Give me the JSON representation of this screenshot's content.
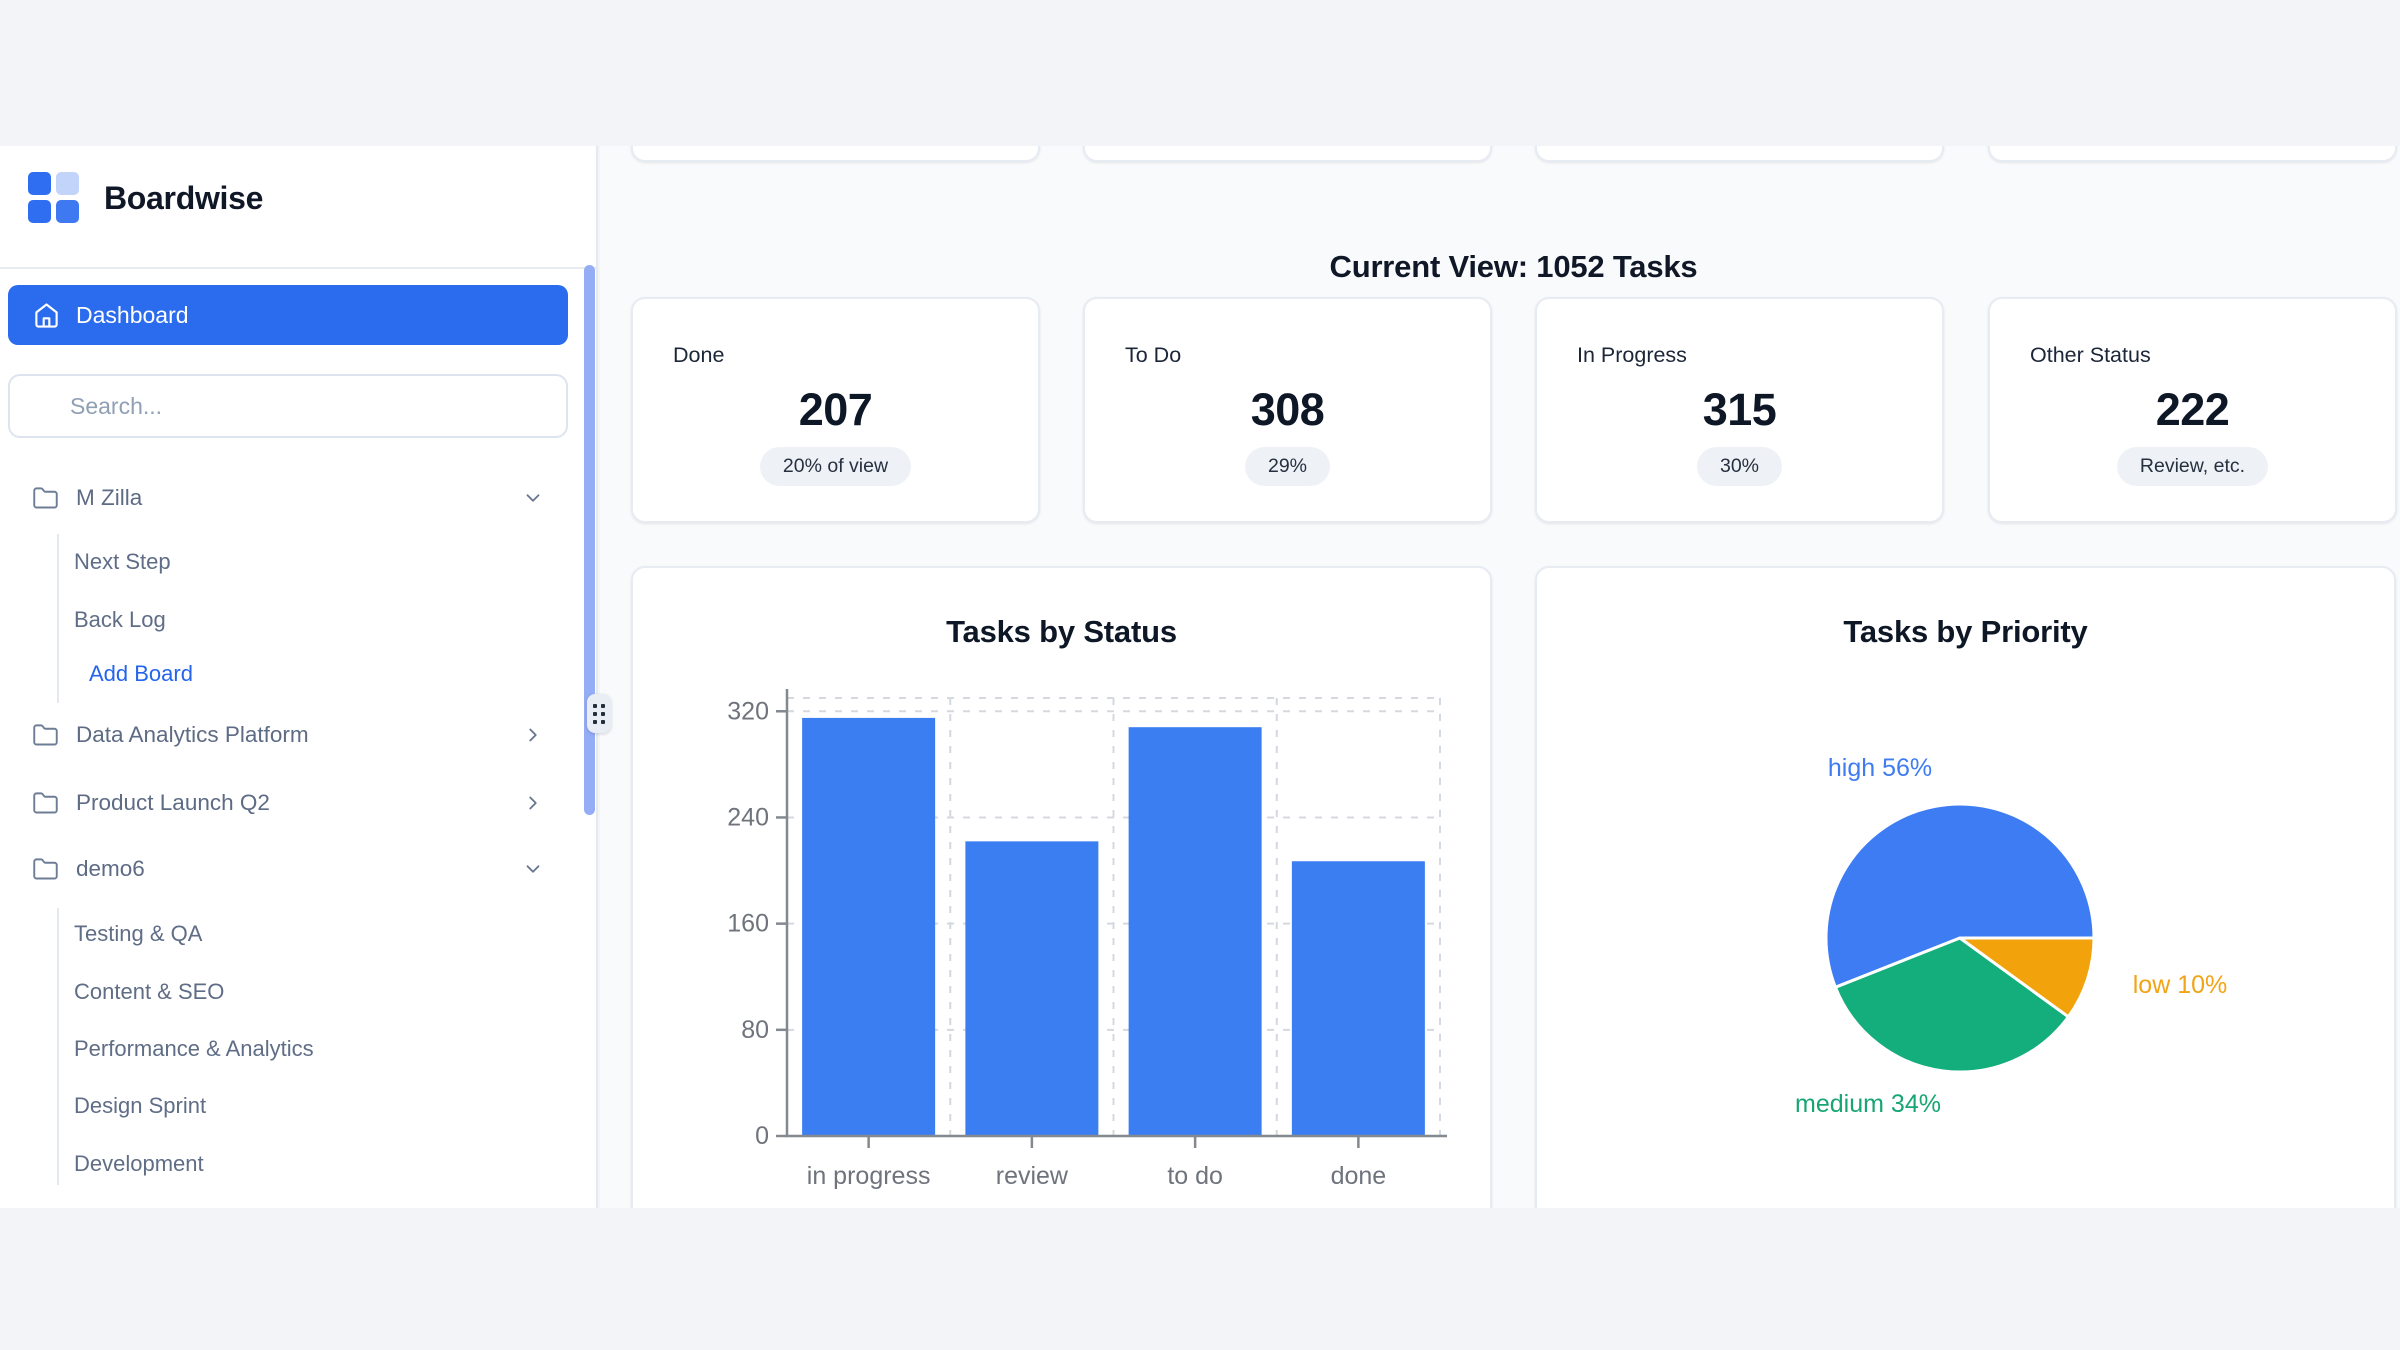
{
  "app": {
    "name": "Boardwise"
  },
  "sidebar": {
    "dashboard_label": "Dashboard",
    "search_placeholder": "Search...",
    "folders": [
      {
        "label": "M Zilla",
        "expanded": true,
        "children": [
          "Next Step",
          "Back Log"
        ],
        "action_label": "Add Board"
      },
      {
        "label": "Data Analytics Platform",
        "expanded": false,
        "children": []
      },
      {
        "label": "Product Launch Q2",
        "expanded": false,
        "children": []
      },
      {
        "label": "demo6",
        "expanded": true,
        "children": [
          "Testing & QA",
          "Content & SEO",
          "Performance & Analytics",
          "Design Sprint",
          "Development"
        ]
      }
    ]
  },
  "main": {
    "heading": "Current View: 1052 Tasks",
    "stats": [
      {
        "label": "Done",
        "value": "207",
        "badge": "20% of view"
      },
      {
        "label": "To Do",
        "value": "308",
        "badge": "29%"
      },
      {
        "label": "In Progress",
        "value": "315",
        "badge": "30%"
      },
      {
        "label": "Other Status",
        "value": "222",
        "badge": "Review, etc."
      }
    ]
  },
  "chart_data": [
    {
      "type": "bar",
      "title": "Tasks by Status",
      "categories": [
        "in progress",
        "review",
        "to do",
        "done"
      ],
      "values": [
        315,
        222,
        308,
        207
      ],
      "yticks": [
        0,
        80,
        160,
        240,
        320
      ],
      "ylim": [
        0,
        330
      ],
      "xlabel": "",
      "ylabel": "",
      "grid": "dashed",
      "legend": "none",
      "bar_color": "#3b7ef2",
      "axis_color": "#84888f",
      "grid_color": "#d4d8df",
      "label_color": "#6e737c"
    },
    {
      "type": "pie",
      "title": "Tasks by Priority",
      "start_angle_deg": 0,
      "direction": "counterclockwise",
      "slices": [
        {
          "label": "high",
          "pct": 56,
          "color": "#3d7cf2",
          "label_color": "#3e7cf0"
        },
        {
          "label": "medium",
          "pct": 34,
          "color": "#14ad7c",
          "label_color": "#17a673"
        },
        {
          "label": "low",
          "pct": 10,
          "color": "#f2a30c",
          "label_color": "#f2a316"
        }
      ]
    }
  ],
  "colors": {
    "accent_blue": "#2b6cee",
    "link_blue": "#2465ec",
    "scrollbar": "#94adf5",
    "page_band": "#f3f4f7",
    "main_bg": "#f9fafc",
    "sidebar_bg": "#ffffff",
    "card_border": "#e7ebf2",
    "badge_bg": "#eef2f7"
  }
}
